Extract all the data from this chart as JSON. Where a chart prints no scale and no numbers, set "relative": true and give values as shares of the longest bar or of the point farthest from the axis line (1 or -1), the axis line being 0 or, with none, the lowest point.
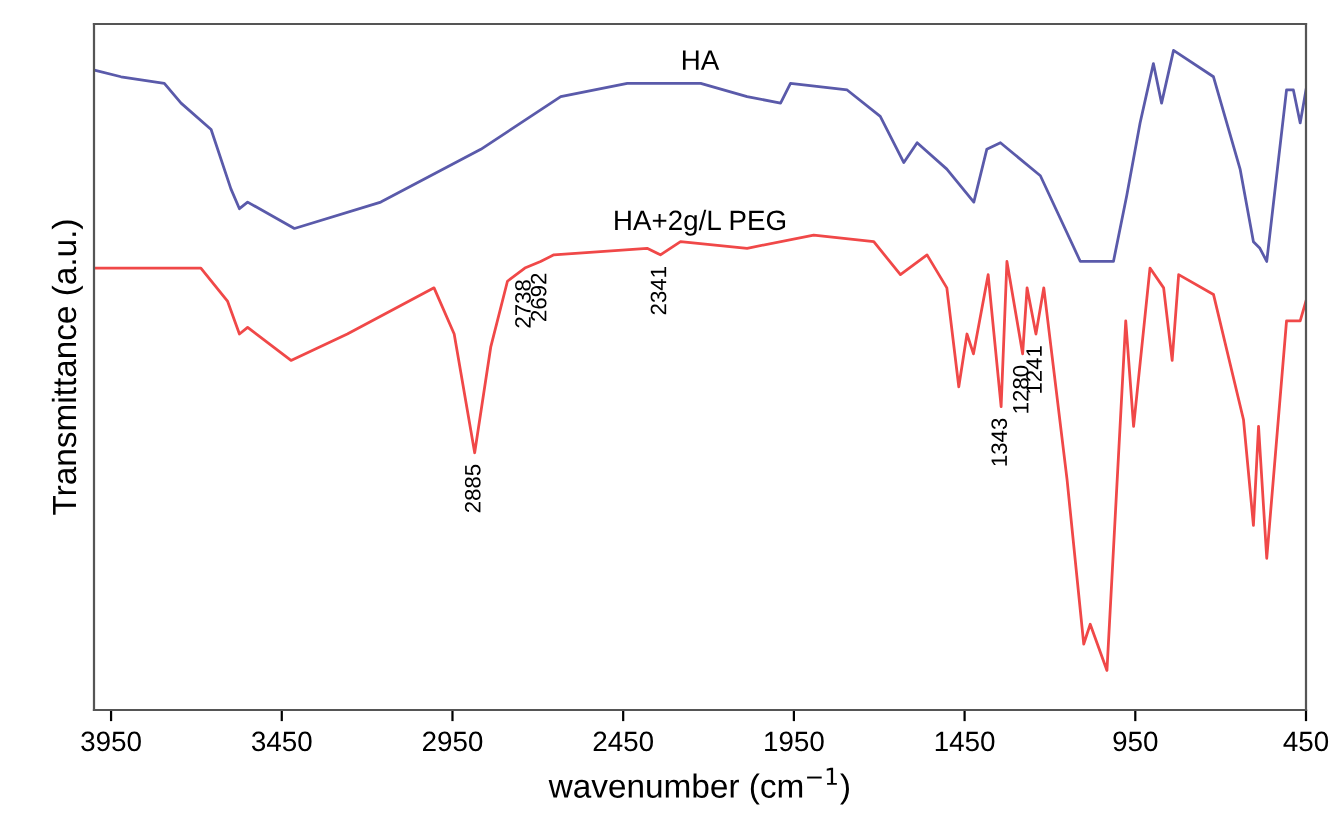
{
  "chart_data": {
    "type": "line",
    "relative": true,
    "xlabel": "wavenumber (cm$^{−1}$)",
    "ylabel": "Transmittance (a.u.)",
    "xlim": [
      4000,
      450
    ],
    "xticks": [
      3950,
      3450,
      2950,
      2450,
      1950,
      1450,
      950,
      450
    ],
    "tick_labels": "x",
    "grid": false,
    "legend": false,
    "marker": "none",
    "line_style": "solid",
    "series": [
      {
        "name": "HA",
        "color": "#5a5aaa",
        "x": [
          3999,
          3921,
          3794,
          3745,
          3657,
          3599,
          3574,
          3550,
          3413,
          3160,
          2867,
          2633,
          2438,
          2223,
          2087,
          1989,
          1960,
          1794,
          1697,
          1628,
          1589,
          1502,
          1423,
          1385,
          1345,
          1228,
          1111,
          1014,
          975,
          936,
          897,
          873,
          838,
          721,
          643,
          604,
          585,
          565,
          507,
          487,
          467,
          450
        ],
        "values": [
          0.97,
          0.96,
          0.95,
          0.92,
          0.88,
          0.79,
          0.76,
          0.77,
          0.73,
          0.77,
          0.85,
          0.93,
          0.95,
          0.95,
          0.93,
          0.92,
          0.95,
          0.94,
          0.9,
          0.83,
          0.86,
          0.82,
          0.77,
          0.85,
          0.86,
          0.81,
          0.68,
          0.68,
          0.78,
          0.89,
          0.98,
          0.92,
          1.0,
          0.96,
          0.82,
          0.71,
          0.7,
          0.68,
          0.94,
          0.94,
          0.89,
          0.94
        ]
      },
      {
        "name": "HA+2g/L PEG",
        "color": "#f04848",
        "x": [
          3999,
          3687,
          3609,
          3574,
          3550,
          3423,
          3258,
          3004,
          2945,
          2885,
          2838,
          2789,
          2738,
          2692,
          2653,
          2380,
          2341,
          2282,
          2087,
          1892,
          1716,
          1638,
          1560,
          1502,
          1467,
          1443,
          1424,
          1381,
          1343,
          1326,
          1280,
          1267,
          1241,
          1218,
          1150,
          1101,
          1082,
          1033,
          978,
          955,
          907,
          867,
          842,
          823,
          721,
          633,
          604,
          589,
          565,
          507,
          467,
          450
        ],
        "values": [
          0.67,
          0.67,
          0.62,
          0.57,
          0.58,
          0.53,
          0.57,
          0.64,
          0.57,
          0.39,
          0.55,
          0.65,
          0.67,
          0.68,
          0.69,
          0.7,
          0.69,
          0.71,
          0.7,
          0.72,
          0.71,
          0.66,
          0.69,
          0.64,
          0.49,
          0.57,
          0.54,
          0.66,
          0.46,
          0.68,
          0.54,
          0.64,
          0.57,
          0.64,
          0.35,
          0.1,
          0.13,
          0.06,
          0.59,
          0.43,
          0.67,
          0.64,
          0.53,
          0.66,
          0.63,
          0.44,
          0.28,
          0.43,
          0.23,
          0.59,
          0.59,
          0.62
        ]
      }
    ],
    "annotations": [
      {
        "text": "2885",
        "x": 2885,
        "y": 0.39
      },
      {
        "text": "2738",
        "x": 2738,
        "y": 0.67
      },
      {
        "text": "2692",
        "x": 2692,
        "y": 0.68
      },
      {
        "text": "2341",
        "x": 2341,
        "y": 0.69
      },
      {
        "text": "1343",
        "x": 1343,
        "y": 0.46
      },
      {
        "text": "1280",
        "x": 1280,
        "y": 0.54
      },
      {
        "text": "1241",
        "x": 1241,
        "y": 0.57
      }
    ]
  }
}
